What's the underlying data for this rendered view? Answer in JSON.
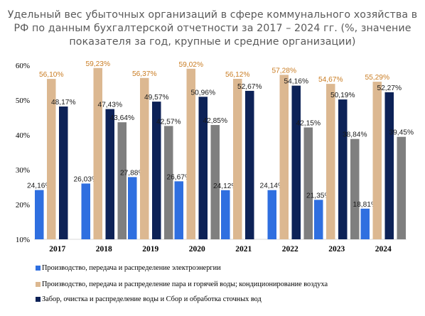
{
  "chart_data": {
    "type": "bar",
    "title": "Удельный вес убыточных организаций в сфере коммунального хозяйства в РФ по данным бухгалтерской отчетности за 2017 – 2024 гг. (%, значение показателя за год, крупные и средние организации)",
    "categories": [
      "2017",
      "2018",
      "2019",
      "2020",
      "2021",
      "2022",
      "2023",
      "2024"
    ],
    "ylim": [
      10,
      60
    ],
    "yticks": [
      "10%",
      "20%",
      "30%",
      "40%",
      "50%",
      "60%"
    ],
    "grid": false,
    "legend_position": "bottom",
    "series": [
      {
        "name": "Производство, передача и распределение электроэнергии",
        "color": "#2f6fe0",
        "values": [
          24.16,
          26.03,
          27.88,
          26.67,
          24.12,
          24.14,
          21.35,
          18.81
        ],
        "labels": [
          "24,16%",
          "26,03%",
          "27,88%",
          "26,67%",
          "24,12%",
          "24,14%",
          "21,35%",
          "18,81%"
        ]
      },
      {
        "name": "Производство, передача и распределение пара и горячей воды; кондиционирование воздуха",
        "color": "#dcb891",
        "label_color": "#c97c22",
        "values": [
          56.1,
          59.23,
          56.37,
          59.02,
          56.12,
          57.28,
          54.67,
          55.29
        ],
        "labels": [
          "56,10%",
          "59,23%",
          "56,37%",
          "59,02%",
          "56,12%",
          "57,28%",
          "54,67%",
          "55,29%"
        ]
      },
      {
        "name": "Забор, очистка и распределение воды и Сбор и обработка сточных вод",
        "color": "#0d2257",
        "values": [
          48.17,
          47.43,
          49.57,
          50.96,
          52.67,
          54.16,
          50.19,
          52.27
        ],
        "labels": [
          "48,17%",
          "47,43%",
          "49,57%",
          "50,96%",
          "52,67%",
          "54,16%",
          "50,19%",
          "52,27%"
        ]
      },
      {
        "name": "",
        "color": "#7f7f7f",
        "values": [
          null,
          43.64,
          42.57,
          42.85,
          null,
          42.15,
          38.84,
          39.45
        ],
        "labels": [
          "",
          "43,64%",
          "42,57%",
          "42,85%",
          "",
          "42,15%",
          "38,84%",
          "39,45%"
        ]
      }
    ]
  }
}
